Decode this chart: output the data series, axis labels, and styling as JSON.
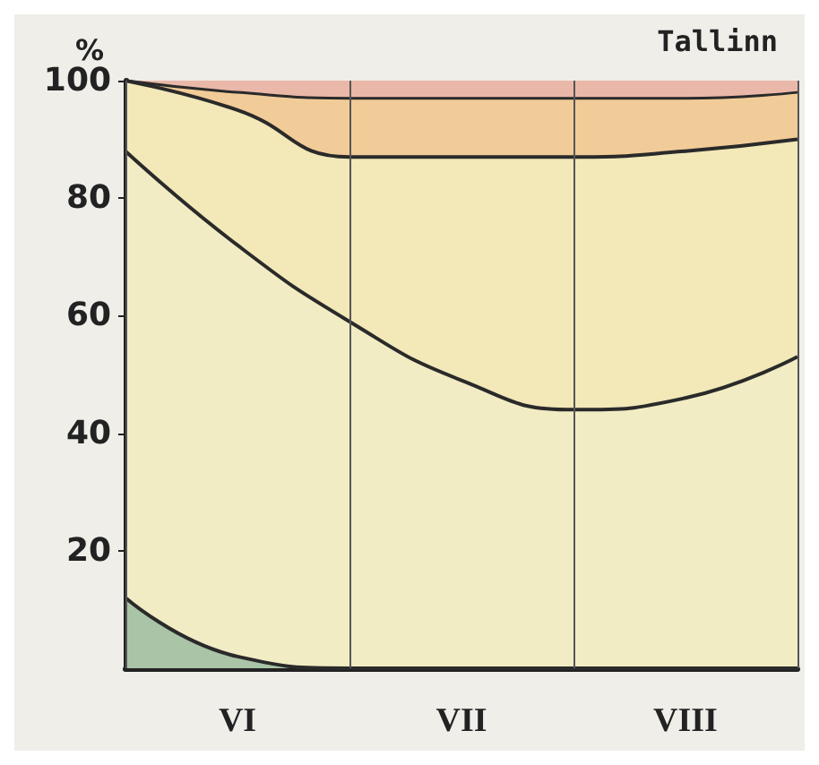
{
  "chart_data": {
    "type": "area",
    "title": "Tallinn",
    "ylabel": "%",
    "stacked": true,
    "categories": [
      null,
      "VI",
      null,
      "VII",
      null,
      "VIII",
      null
    ],
    "series": [
      {
        "color": "#a9c4a6",
        "values": [
          12,
          2,
          0,
          0,
          0,
          0,
          0
        ]
      },
      {
        "color": "#f2ecc4",
        "values": [
          76,
          70,
          59,
          49,
          44,
          46,
          53
        ]
      },
      {
        "color": "#f2e8b8",
        "values": [
          12,
          23,
          28,
          38,
          43,
          42,
          37
        ]
      },
      {
        "color": "#f1cc98",
        "values": [
          0,
          3,
          10,
          10,
          10,
          9,
          8
        ]
      },
      {
        "color": "#eab8a8",
        "values": [
          0,
          2,
          3,
          3,
          3,
          3,
          2
        ]
      }
    ],
    "ylim": [
      0,
      100
    ],
    "yticks": [
      20,
      40,
      60,
      80,
      100
    ],
    "grid": "x",
    "marker": "none",
    "line_style": "solid"
  }
}
